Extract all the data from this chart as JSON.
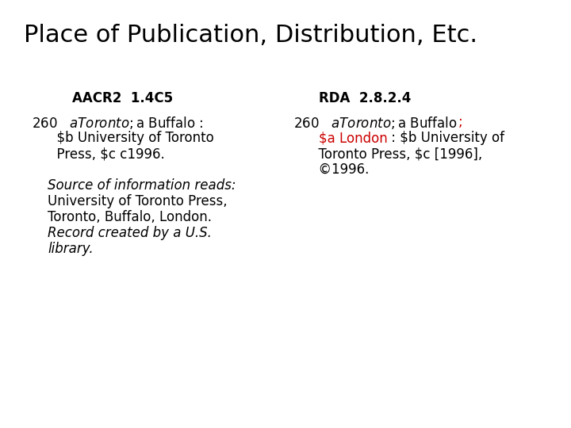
{
  "title": "Place of Publication, Distribution, Etc.",
  "title_fontsize": 22,
  "background_color": "#ffffff",
  "aacr2_header": "AACR2  1.4C5",
  "rda_header": "RDA  2.8.2.4",
  "header_fontsize": 12,
  "body_fontsize": 12,
  "black": "#000000",
  "red": "#cc0000",
  "aacr2_line1": "260   $a Toronto ; $a Buffalo :",
  "aacr2_line2": "      $b University of Toronto",
  "aacr2_line3": "      Press, $c c1996.",
  "rda_line1_black": "260   $a Toronto ; $a Buffalo ",
  "rda_line1_red": ";",
  "rda_line2_indent": "      ",
  "rda_line2_red": "$a London",
  "rda_line2_black": " : $b University of",
  "rda_line3": "      Toronto Press, $c [1996],",
  "rda_line4": "      ©1996.",
  "source_line1": "Source of information reads:",
  "source_line2": "University of Toronto Press,",
  "source_line3": "Toronto, Buffalo, London.",
  "source_line4": "Record created by a U.S.",
  "source_line5": "library."
}
